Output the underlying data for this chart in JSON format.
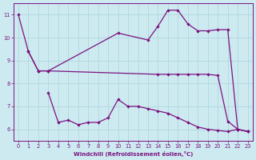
{
  "background_color": "#cdeaf0",
  "line_color": "#7B1280",
  "grid_color": "#b0d8e0",
  "xlabel": "Windchill (Refroidissement éolien,°C)",
  "xlim": [
    -0.5,
    23.5
  ],
  "ylim": [
    5.5,
    11.5
  ],
  "yticks": [
    6,
    7,
    8,
    9,
    10,
    11
  ],
  "xticks": [
    0,
    1,
    2,
    3,
    4,
    5,
    6,
    7,
    8,
    9,
    10,
    11,
    12,
    13,
    14,
    15,
    16,
    17,
    18,
    19,
    20,
    21,
    22,
    23
  ],
  "series": [
    {
      "x": [
        0,
        1,
        2,
        3,
        14,
        15,
        16,
        17,
        18,
        19,
        20,
        21,
        22,
        23
      ],
      "y": [
        11.0,
        9.4,
        8.55,
        8.55,
        8.4,
        8.4,
        8.4,
        8.4,
        8.4,
        8.4,
        8.35,
        6.35,
        6.0,
        5.9
      ]
    },
    {
      "x": [
        3,
        4,
        5,
        6,
        7,
        8,
        9,
        10,
        11,
        12,
        13,
        14,
        15,
        16,
        17,
        18,
        19,
        20,
        21,
        22,
        23
      ],
      "y": [
        7.6,
        6.3,
        6.4,
        6.2,
        6.3,
        6.3,
        6.5,
        7.3,
        7.0,
        7.0,
        6.9,
        6.8,
        6.7,
        6.5,
        6.3,
        6.1,
        6.0,
        5.95,
        5.9,
        6.0,
        5.9
      ]
    },
    {
      "x": [
        1,
        2,
        3,
        10,
        13,
        14,
        15,
        16,
        17,
        18,
        19,
        20,
        21,
        22,
        23
      ],
      "y": [
        9.4,
        8.55,
        8.55,
        10.2,
        9.9,
        10.5,
        11.2,
        11.2,
        10.6,
        10.3,
        10.3,
        10.35,
        10.35,
        6.0,
        5.9
      ]
    }
  ]
}
